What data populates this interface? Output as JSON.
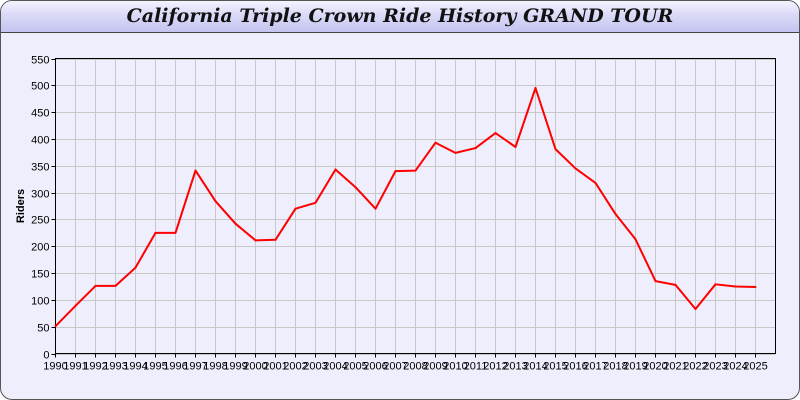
{
  "chart_data": {
    "type": "line",
    "title": "California Triple Crown Ride History GRAND TOUR",
    "xlabel": "",
    "ylabel": "Riders",
    "ylim": [
      0,
      550
    ],
    "yticks": [
      0,
      50,
      100,
      150,
      200,
      250,
      300,
      350,
      400,
      450,
      500,
      550
    ],
    "grid": true,
    "x": [
      1990,
      1991,
      1992,
      1993,
      1994,
      1995,
      1996,
      1997,
      1998,
      1999,
      2000,
      2001,
      2002,
      2003,
      2004,
      2005,
      2006,
      2007,
      2008,
      2009,
      2010,
      2011,
      2012,
      2013,
      2014,
      2015,
      2016,
      2017,
      2018,
      2019,
      2020,
      2021,
      2022,
      2023,
      2024,
      2025
    ],
    "series": [
      {
        "color": "#ff0000",
        "values": [
          51,
          89,
          126,
          126,
          160,
          225,
          225,
          341,
          284,
          242,
          211,
          212,
          270,
          281,
          343,
          310,
          270,
          340,
          341,
          393,
          374,
          383,
          411,
          385,
          495,
          381,
          345,
          318,
          260,
          213,
          135,
          128,
          83,
          129,
          125,
          124
        ]
      }
    ]
  }
}
